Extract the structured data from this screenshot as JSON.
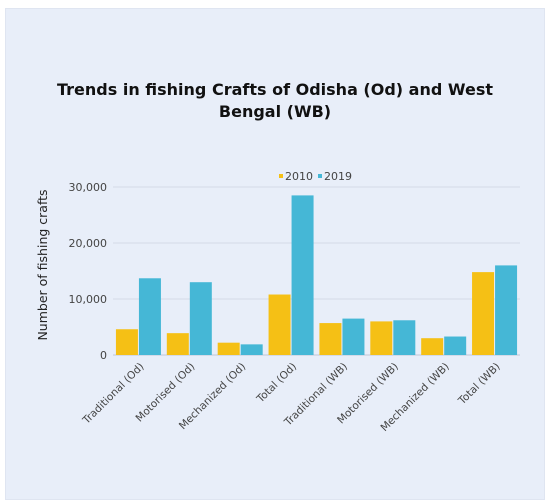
{
  "chart_data": {
    "type": "bar",
    "title_line1": "Trends in fishing Crafts of Odisha (Od) and West",
    "title_line2": "Bengal (WB)",
    "ylabel": "Number of fishing crafts",
    "xlabel": "",
    "categories": [
      "Traditional (Od)",
      "Motorised (Od)",
      "Mechanized (Od)",
      "Total (Od)",
      "Traditional (WB)",
      "Motorised (WB)",
      "Mechanized (WB)",
      "Total (WB)"
    ],
    "series": [
      {
        "name": "2010",
        "color": "#f5c015",
        "values": [
          4600,
          3900,
          2200,
          10800,
          5700,
          6000,
          3000,
          14800
        ]
      },
      {
        "name": "2019",
        "color": "#45b7d6",
        "values": [
          13700,
          13000,
          1900,
          28500,
          6500,
          6200,
          3300,
          16000
        ]
      }
    ],
    "ylim": [
      0,
      30000
    ],
    "yticks": [
      0,
      10000,
      20000,
      30000
    ],
    "ytick_labels": [
      "0",
      "10,000",
      "20,000",
      "30,000"
    ],
    "grid": true,
    "legend_position": "top-center"
  }
}
